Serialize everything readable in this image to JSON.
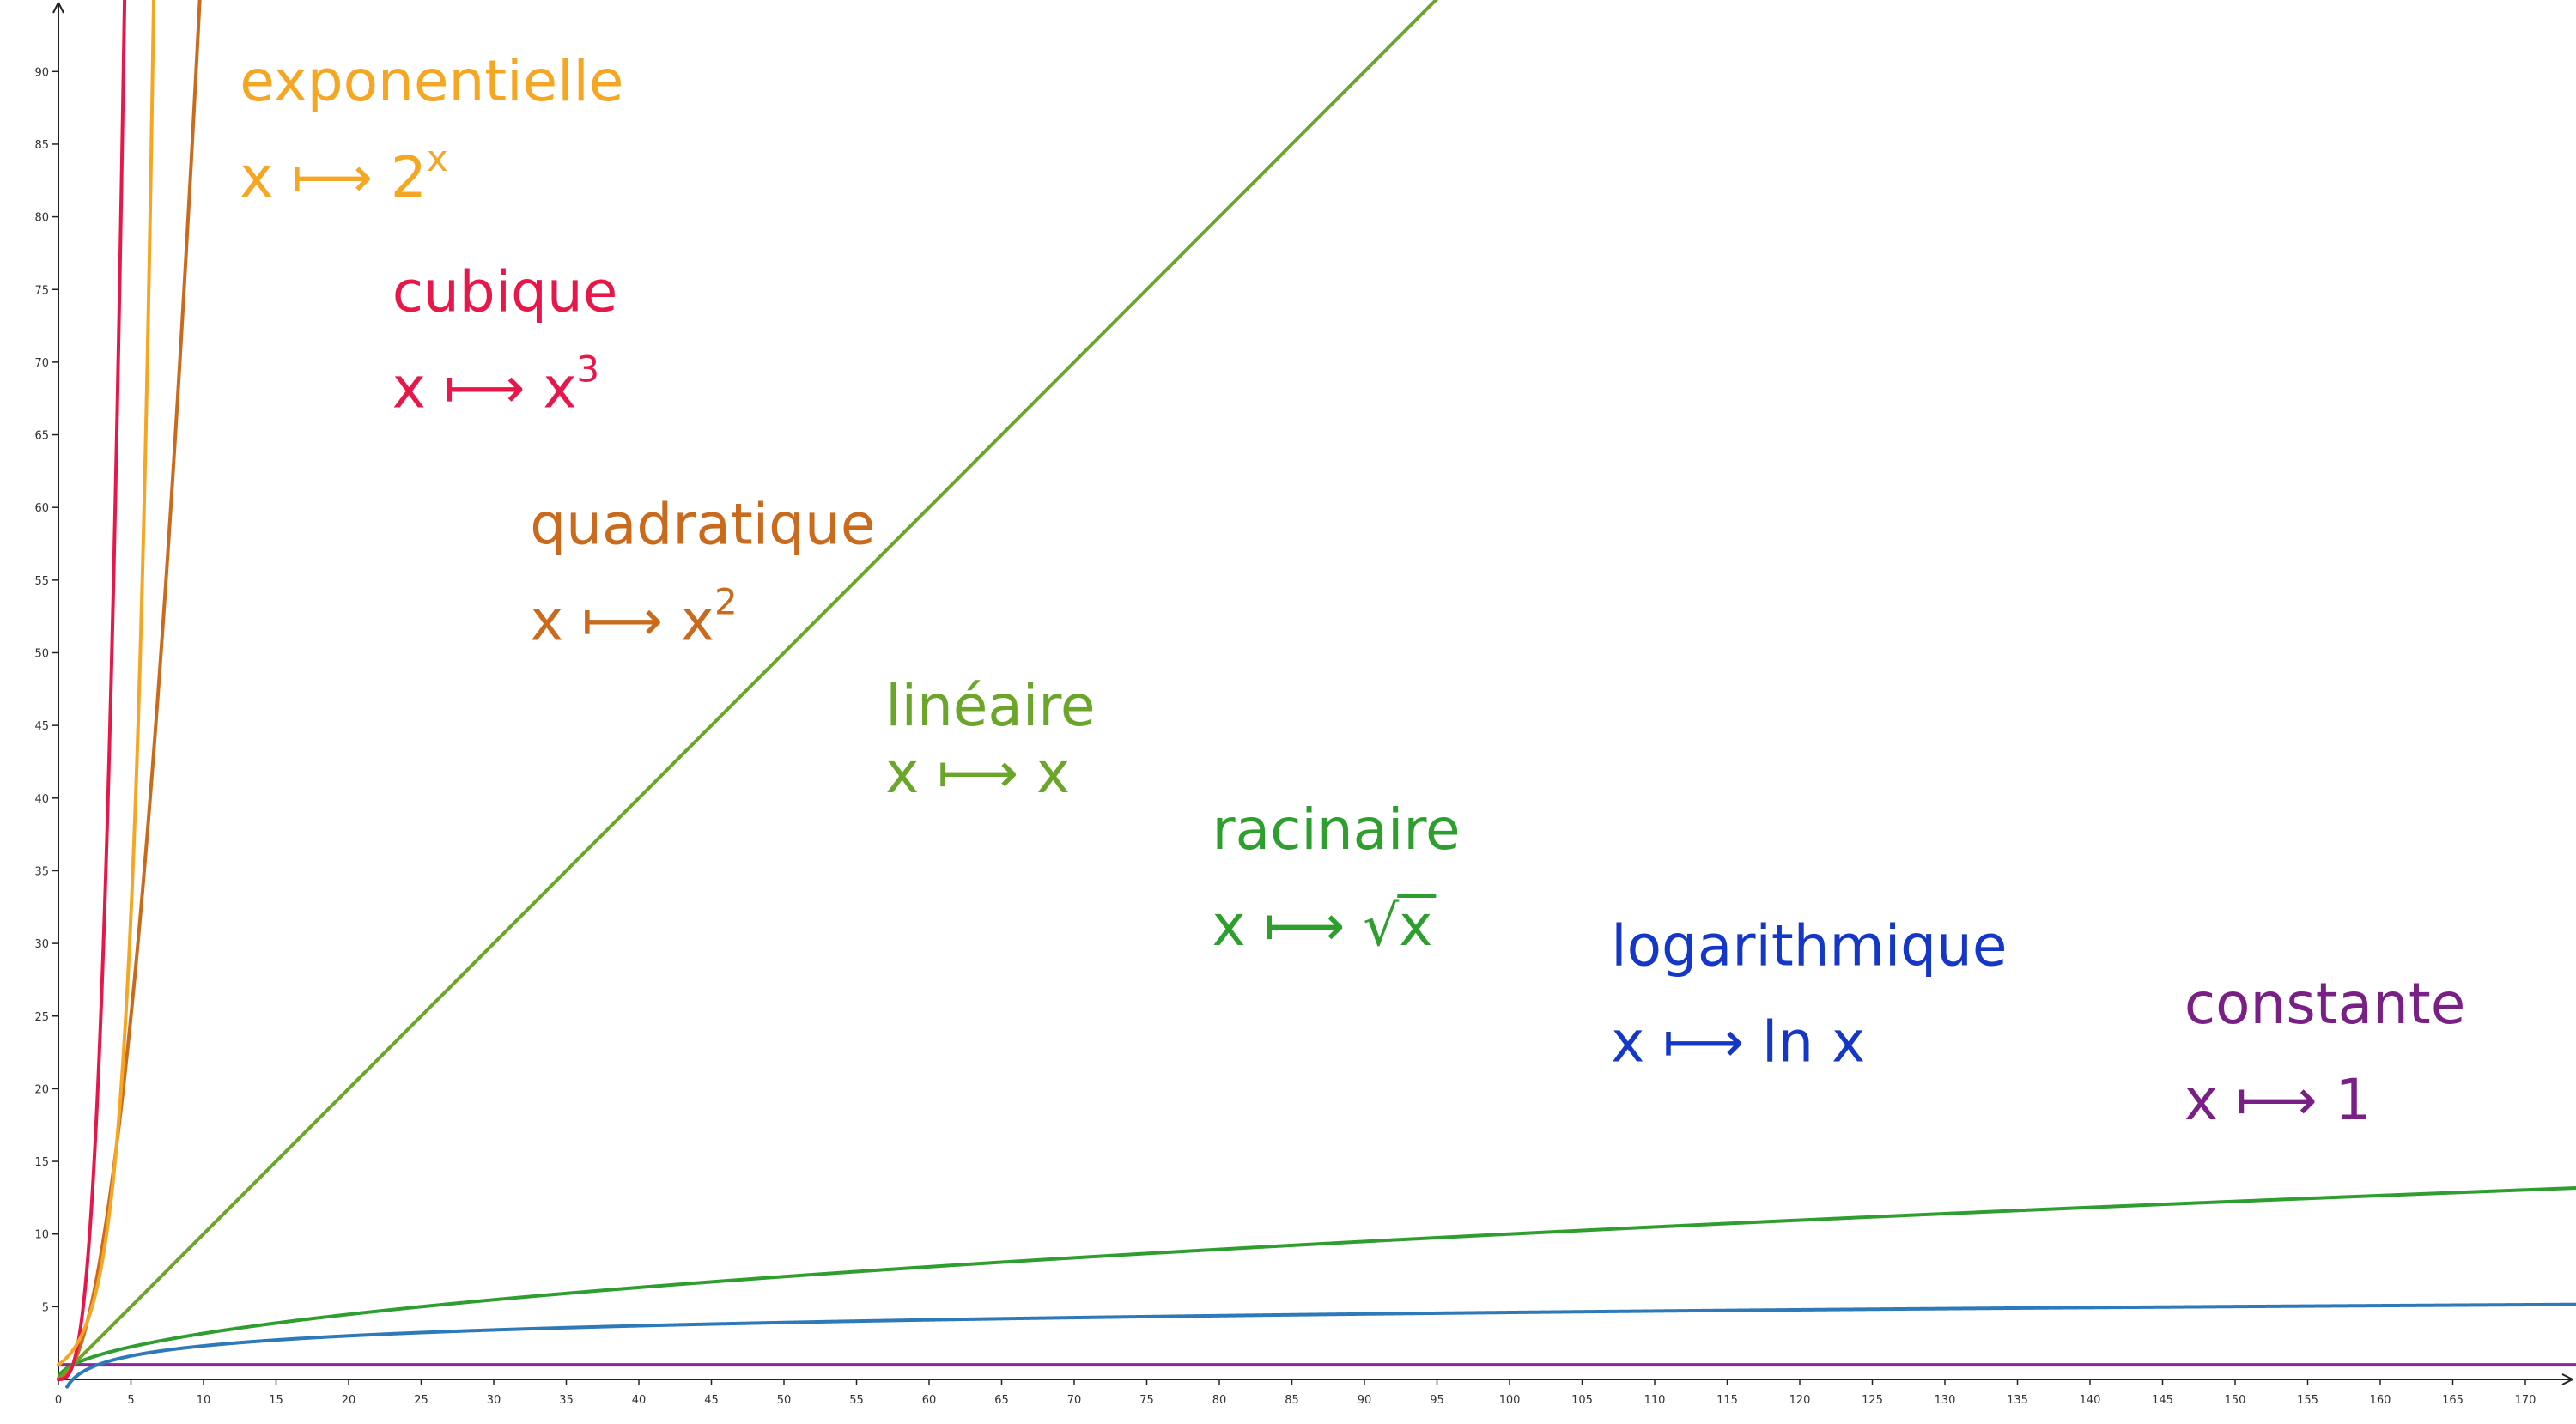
{
  "chart_data": {
    "type": "line",
    "title": "",
    "xlabel": "",
    "ylabel": "",
    "xlim": [
      0,
      174
    ],
    "ylim": [
      0,
      95
    ],
    "x_ticks": [
      0,
      5,
      10,
      15,
      20,
      25,
      30,
      35,
      40,
      45,
      50,
      55,
      60,
      65,
      70,
      75,
      80,
      85,
      90,
      95,
      100,
      105,
      110,
      115,
      120,
      125,
      130,
      135,
      140,
      145,
      150,
      155,
      160,
      165,
      170
    ],
    "y_ticks": [
      5,
      10,
      15,
      20,
      25,
      30,
      35,
      40,
      45,
      50,
      55,
      60,
      65,
      70,
      75,
      80,
      85,
      90
    ],
    "grid": false,
    "series": [
      {
        "name": "exponentielle",
        "formula": {
          "lhs": "x",
          "arrow": "⟼",
          "base": "2",
          "sup": "x",
          "rad": ""
        },
        "color": "#F5A623",
        "kind": "exp2",
        "label_pos": {
          "x": 12.5,
          "y": 88
        }
      },
      {
        "name": "cubique",
        "formula": {
          "lhs": "x",
          "arrow": "⟼",
          "base": "x",
          "sup": "3",
          "rad": ""
        },
        "color": "#E8174A",
        "kind": "cube",
        "label_pos": {
          "x": 23,
          "y": 73.5
        }
      },
      {
        "name": "quadratique",
        "formula": {
          "lhs": "x",
          "arrow": "⟼",
          "base": "x",
          "sup": "2",
          "rad": ""
        },
        "color": "#C96A1C",
        "kind": "square",
        "label_pos": {
          "x": 32.5,
          "y": 57.5
        }
      },
      {
        "name": "linéaire",
        "formula": {
          "lhs": "x",
          "arrow": "⟼",
          "base": "x",
          "sup": "",
          "rad": ""
        },
        "color": "#6BA52A",
        "kind": "linear",
        "label_pos": {
          "x": 57,
          "y": 45
        }
      },
      {
        "name": "racinaire",
        "formula": {
          "lhs": "x",
          "arrow": "⟼",
          "base": "",
          "sup": "",
          "rad": "x"
        },
        "color": "#2E9E2E",
        "kind": "sqrt",
        "label_pos": {
          "x": 79.5,
          "y": 36.5
        }
      },
      {
        "name": "logarithmique",
        "formula": {
          "lhs": "x",
          "arrow": "⟼",
          "base": "ln x",
          "sup": "",
          "rad": ""
        },
        "color": "#1437C8",
        "curve_color": "#2E79B8",
        "kind": "log",
        "label_pos": {
          "x": 107,
          "y": 28.5
        }
      },
      {
        "name": "constante",
        "formula": {
          "lhs": "x",
          "arrow": "⟼",
          "base": "1",
          "sup": "",
          "rad": ""
        },
        "color": "#7A1F86",
        "curve_color": "#8A2A9A",
        "kind": "const",
        "label_pos": {
          "x": 146.5,
          "y": 24.5
        }
      }
    ]
  }
}
